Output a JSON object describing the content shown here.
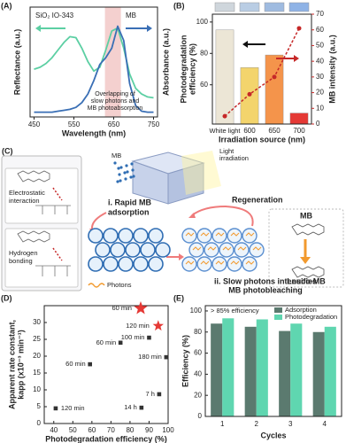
{
  "chart_data": [
    {
      "type": "line",
      "panel": "(A)",
      "xlabel": "Wavelength (nm)",
      "ylabel": "Reflectance (a.u.)",
      "y2label": "Absorbance (a.u.)",
      "xlim": [
        440,
        760
      ],
      "xticks": [
        450,
        550,
        650,
        750
      ],
      "ylim": [
        0,
        1.15
      ],
      "y2lim": [
        0,
        1.15
      ],
      "x": [
        450,
        465,
        480,
        495,
        510,
        525,
        540,
        555,
        570,
        585,
        600,
        615,
        630,
        645,
        660,
        675,
        690,
        705,
        720,
        735,
        750
      ],
      "highlight": [
        628,
        668
      ],
      "highlight_color": "#f4d0cf",
      "annotation": [
        "Overlapping of",
        "slow photons and",
        "MB photoabsorption"
      ],
      "series": [
        {
          "name": "SiO₂ IO-343",
          "color": "#5ccfa3",
          "values": [
            0.5,
            0.52,
            0.56,
            0.62,
            0.7,
            0.78,
            0.84,
            0.83,
            0.72,
            0.58,
            0.48,
            0.52,
            0.7,
            0.9,
            0.93,
            0.72,
            0.45,
            0.3,
            0.24,
            0.21,
            0.2
          ]
        },
        {
          "name": "MB",
          "color": "#3a6fb5",
          "axis": "y2",
          "values": [
            0.05,
            0.05,
            0.05,
            0.05,
            0.06,
            0.07,
            0.08,
            0.1,
            0.15,
            0.24,
            0.38,
            0.55,
            0.62,
            0.72,
            0.95,
            0.8,
            0.35,
            0.12,
            0.06,
            0.05,
            0.05
          ]
        }
      ]
    },
    {
      "type": "combo",
      "panel": "(B)",
      "xlabel": "Irradiation source (nm)",
      "ylabel": [
        "Photodegradation",
        "efficiency (%)"
      ],
      "y2label": "MB intensity (a.u.)",
      "categories": [
        "White light",
        "600",
        "650",
        "700"
      ],
      "ylim": [
        35,
        105
      ],
      "yticks": [
        60,
        80,
        100
      ],
      "y2lim": [
        0,
        70
      ],
      "y2ticks": [
        0,
        10,
        20,
        30,
        40,
        50,
        60,
        70
      ],
      "series": [
        {
          "type": "bar",
          "colors": [
            "#ece6d6",
            "#f3d46c",
            "#f4944b",
            "#e53935"
          ],
          "values": [
            95,
            71,
            79,
            42
          ]
        },
        {
          "type": "line",
          "axis": "y2",
          "color": "#c62828",
          "linestyle": "dashed",
          "values": [
            5,
            19,
            30,
            61
          ]
        }
      ]
    },
    {
      "type": "scatter",
      "panel": "(D)",
      "xlabel": "Photodegradation efficiency (%)",
      "ylabel": [
        "Apparent rate constant,",
        "kapp (x10⁻³ min⁻¹)"
      ],
      "xlim": [
        35,
        100
      ],
      "xticks": [
        40,
        50,
        60,
        70,
        80,
        90,
        100
      ],
      "ylim": [
        0,
        35
      ],
      "yticks": [
        0,
        5,
        10,
        15,
        20,
        25,
        30
      ],
      "series": [
        {
          "color": "#333333",
          "marker": "square",
          "x": [
            41,
            59,
            75,
            90,
            99,
            95.3,
            86
          ],
          "values": [
            4.5,
            17.6,
            24,
            25.5,
            19.7,
            8.7,
            4.7
          ],
          "labels": [
            "120 min",
            "60 min",
            "60 min",
            "100 min",
            "180 min",
            "7 h",
            "14 h"
          ]
        },
        {
          "color": "#e53935",
          "marker": "star",
          "x": [
            85.6,
            94.8
          ],
          "values": [
            34.2,
            29
          ],
          "labels": [
            "60 min",
            "120 min"
          ]
        }
      ]
    },
    {
      "type": "bar",
      "panel": "(E)",
      "xlabel": "Cycles",
      "ylabel": "Efficiency (%)",
      "annotation": "> 85% efficiency",
      "categories": [
        "1",
        "2",
        "3",
        "4"
      ],
      "ylim": [
        0,
        105
      ],
      "yticks": [
        0,
        20,
        40,
        60,
        80,
        100
      ],
      "series": [
        {
          "name": "Adsorption",
          "color": "#5b7a6f",
          "values": [
            88,
            85,
            81,
            80
          ]
        },
        {
          "name": "Photodegradation",
          "color": "#5fd6b0",
          "values": [
            93,
            92,
            88,
            85
          ]
        }
      ]
    }
  ],
  "diagram": {
    "panel": "(C)",
    "mb_top": "MB",
    "light": [
      "Light",
      "irradiation"
    ],
    "step1": [
      "i. Rapid MB",
      "adsorption"
    ],
    "regeneration": "Regeneration",
    "electrostatic": [
      "Electrostatic",
      "interaction"
    ],
    "hydrogen": [
      "Hydrogen",
      "bonding"
    ],
    "mb": "MB",
    "leuco": "Leuco-MB",
    "photons": "Photons",
    "step2": [
      "ii. Slow photons intensifies",
      "MB photobleaching"
    ]
  }
}
